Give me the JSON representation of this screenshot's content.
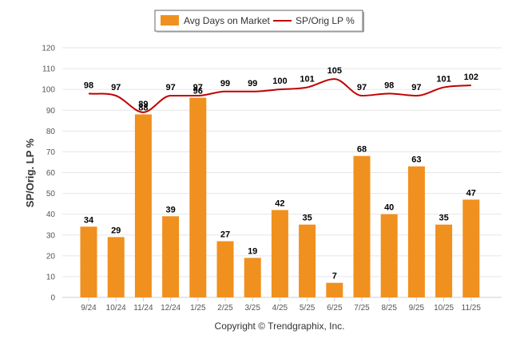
{
  "chart_data": {
    "type": "bar",
    "categories": [
      "9/24",
      "10/24",
      "11/24",
      "12/24",
      "1/25",
      "2/25",
      "3/25",
      "4/25",
      "5/25",
      "6/25",
      "7/25",
      "8/25",
      "9/25",
      "10/25",
      "11/25"
    ],
    "series": [
      {
        "name": "Avg Days on Market",
        "kind": "bar",
        "color": "#f0901e",
        "values": [
          34,
          29,
          88,
          39,
          96,
          27,
          19,
          42,
          35,
          7,
          68,
          40,
          63,
          35,
          47
        ]
      },
      {
        "name": "SP/Orig LP %",
        "kind": "line",
        "color": "#c00000",
        "values": [
          98,
          97,
          89,
          97,
          97,
          99,
          99,
          100,
          101,
          105,
          97,
          98,
          97,
          101,
          102
        ]
      }
    ],
    "ylabel": "SP/Orig. LP %",
    "xlabel": "",
    "ylim": [
      0,
      120
    ],
    "yticks": [
      0,
      10,
      20,
      30,
      40,
      50,
      60,
      70,
      80,
      90,
      100,
      110,
      120
    ],
    "grid": true,
    "legend_position": "top-center"
  },
  "footer": {
    "copyright": "Copyright © Trendgraphix, Inc."
  }
}
